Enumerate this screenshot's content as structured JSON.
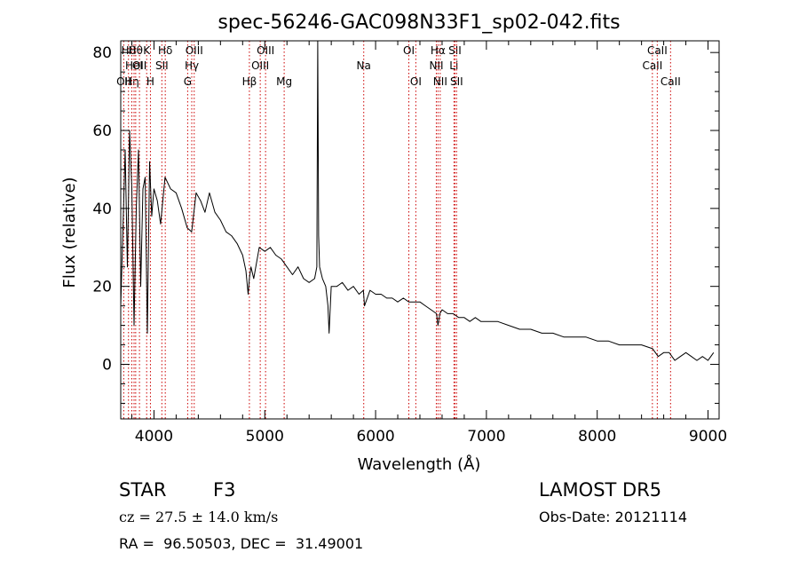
{
  "chart_data": {
    "type": "line",
    "title": "spec-56246-GAC098N33F1_sp02-042.fits",
    "xlabel": "Wavelength (Å)",
    "ylabel": "Flux (relative)",
    "xlim": [
      3700,
      9100
    ],
    "ylim": [
      -14,
      83
    ],
    "xticks": [
      4000,
      5000,
      6000,
      7000,
      8000,
      9000
    ],
    "yticks": [
      0,
      20,
      40,
      60,
      80
    ],
    "grid": false,
    "line_color": "#000000",
    "marker_color": "#cc0000",
    "series": [
      {
        "x": [
          3700,
          3720,
          3740,
          3760,
          3780,
          3800,
          3820,
          3840,
          3860,
          3880,
          3900,
          3920,
          3940,
          3960,
          3980,
          4000,
          4030,
          4060,
          4100,
          4150,
          4200,
          4250,
          4300,
          4340,
          4380,
          4420,
          4460,
          4500,
          4550,
          4600,
          4650,
          4700,
          4750,
          4800,
          4830,
          4850,
          4861,
          4875,
          4900,
          4950,
          5000,
          5050,
          5100,
          5150,
          5200,
          5250,
          5300,
          5350,
          5400,
          5450,
          5470,
          5478,
          5486,
          5495,
          5520,
          5550,
          5570,
          5580,
          5600,
          5650,
          5700,
          5750,
          5800,
          5850,
          5890,
          5900,
          5950,
          6000,
          6050,
          6100,
          6150,
          6200,
          6250,
          6300,
          6350,
          6400,
          6450,
          6500,
          6550,
          6563,
          6580,
          6600,
          6650,
          6700,
          6750,
          6800,
          6850,
          6900,
          6950,
          7000,
          7100,
          7200,
          7300,
          7400,
          7500,
          7600,
          7700,
          7800,
          7900,
          8000,
          8100,
          8200,
          8300,
          8400,
          8500,
          8550,
          8600,
          8650,
          8700,
          8750,
          8800,
          8850,
          8900,
          8950,
          9000,
          9050
        ],
        "y": [
          15,
          35,
          55,
          25,
          60,
          45,
          10,
          40,
          55,
          20,
          45,
          48,
          8,
          52,
          38,
          45,
          42,
          36,
          48,
          45,
          44,
          40,
          35,
          34,
          44,
          42,
          39,
          44,
          39,
          37,
          34,
          33,
          31,
          28,
          24,
          18,
          22,
          25,
          22,
          30,
          29,
          30,
          28,
          27,
          25,
          23,
          25,
          22,
          21,
          22,
          25,
          85,
          33,
          25,
          22,
          20,
          15,
          8,
          20,
          20,
          21,
          19,
          20,
          18,
          19,
          15,
          19,
          18,
          18,
          17,
          17,
          16,
          17,
          16,
          16,
          16,
          15,
          14,
          13,
          10,
          13,
          14,
          13,
          13,
          12,
          12,
          11,
          12,
          11,
          11,
          11,
          10,
          9,
          9,
          8,
          8,
          7,
          7,
          7,
          6,
          6,
          5,
          5,
          5,
          4,
          2,
          3,
          3,
          1,
          2,
          3,
          2,
          1,
          2,
          1,
          3
        ]
      }
    ],
    "lines": [
      {
        "wavelength": 3727,
        "labels": [
          "OII"
        ],
        "row": 2
      },
      {
        "wavelength": 3770,
        "labels": [
          "Hθ"
        ],
        "row": 0
      },
      {
        "wavelength": 3800,
        "labels": [
          "Hη"
        ],
        "row": 2
      },
      {
        "wavelength": 3820,
        "labels": [
          "HeI"
        ],
        "row": 1
      },
      {
        "wavelength": 3835,
        "labels": [
          "Hθ"
        ],
        "row": 0
      },
      {
        "wavelength": 3869,
        "labels": [
          "OII"
        ],
        "row": 1
      },
      {
        "wavelength": 3934,
        "labels": [
          "K"
        ],
        "row": 0
      },
      {
        "wavelength": 3968,
        "labels": [
          "H"
        ],
        "row": 2
      },
      {
        "wavelength": 4071,
        "labels": [
          "SII"
        ],
        "row": 1
      },
      {
        "wavelength": 4102,
        "labels": [
          "Hδ"
        ],
        "row": 0
      },
      {
        "wavelength": 4304,
        "labels": [
          "G"
        ],
        "row": 2
      },
      {
        "wavelength": 4341,
        "labels": [
          "Hγ"
        ],
        "row": 1
      },
      {
        "wavelength": 4363,
        "labels": [
          "OIII"
        ],
        "row": 0
      },
      {
        "wavelength": 4861,
        "labels": [
          "Hβ"
        ],
        "row": 2
      },
      {
        "wavelength": 4959,
        "labels": [
          "OIII"
        ],
        "row": 1
      },
      {
        "wavelength": 5007,
        "labels": [
          "OIII"
        ],
        "row": 0
      },
      {
        "wavelength": 5175,
        "labels": [
          "Mg"
        ],
        "row": 2
      },
      {
        "wavelength": 5893,
        "labels": [
          "Na"
        ],
        "row": 1
      },
      {
        "wavelength": 6300,
        "labels": [
          "OI"
        ],
        "row": 0
      },
      {
        "wavelength": 6363,
        "labels": [
          "OI"
        ],
        "row": 2
      },
      {
        "wavelength": 6548,
        "labels": [
          "NII"
        ],
        "row": 1
      },
      {
        "wavelength": 6563,
        "labels": [
          "Hα"
        ],
        "row": 0
      },
      {
        "wavelength": 6583,
        "labels": [
          "NII"
        ],
        "row": 2
      },
      {
        "wavelength": 6707,
        "labels": [
          "Li"
        ],
        "row": 1
      },
      {
        "wavelength": 6716,
        "labels": [
          "SII"
        ],
        "row": 0
      },
      {
        "wavelength": 6731,
        "labels": [
          "SII"
        ],
        "row": 2
      },
      {
        "wavelength": 8498,
        "labels": [
          "CaII"
        ],
        "row": 1
      },
      {
        "wavelength": 8542,
        "labels": [
          "CaII"
        ],
        "row": 0
      },
      {
        "wavelength": 8662,
        "labels": [
          "CaII"
        ],
        "row": 2
      }
    ]
  },
  "info": {
    "object_class": "STAR",
    "subclass": "F3",
    "cz": "cz = 27.5 ± 14.0 km/s",
    "coords": "RA =  96.50503, DEC =  31.49001",
    "survey": "LAMOST DR5",
    "obs_date": "Obs-Date: 20121114"
  }
}
